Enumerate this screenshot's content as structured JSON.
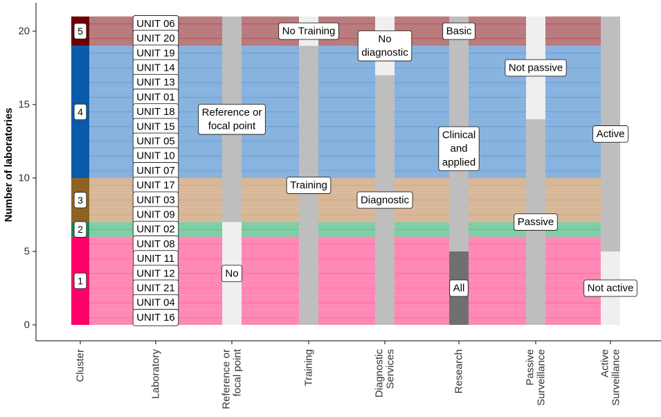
{
  "chart_data": {
    "type": "alluvial",
    "ylabel": "Number of laboratories",
    "ylim": [
      0,
      21
    ],
    "y_ticks": [
      0,
      5,
      10,
      15,
      20
    ],
    "axes": [
      "Cluster",
      "Laboratory",
      "Reference or focal point",
      "Training",
      "Diagnostic Services",
      "Research",
      "Passive Surveillance",
      "Active Surveillance"
    ],
    "strata": [
      [
        {
          "label": "5",
          "y0": 19,
          "y1": 21,
          "fill": "#6d0000"
        },
        {
          "label": "4",
          "y0": 10,
          "y1": 19,
          "fill": "#0a5aaa"
        },
        {
          "label": "3",
          "y0": 7,
          "y1": 10,
          "fill": "#8f6123"
        },
        {
          "label": "2",
          "y0": 6,
          "y1": 7,
          "fill": "#0b8e49"
        },
        {
          "label": "1",
          "y0": 0,
          "y1": 6,
          "fill": "#ff0068"
        }
      ],
      [
        {
          "label": "UNIT 06",
          "y0": 20,
          "y1": 21
        },
        {
          "label": "UNIT 20",
          "y0": 19,
          "y1": 20
        },
        {
          "label": "UNIT 19",
          "y0": 18,
          "y1": 19
        },
        {
          "label": "UNIT 14",
          "y0": 17,
          "y1": 18
        },
        {
          "label": "UNIT 13",
          "y0": 16,
          "y1": 17
        },
        {
          "label": "UNIT 01",
          "y0": 15,
          "y1": 16
        },
        {
          "label": "UNIT 18",
          "y0": 14,
          "y1": 15
        },
        {
          "label": "UNIT 15",
          "y0": 13,
          "y1": 14
        },
        {
          "label": "UNIT 05",
          "y0": 12,
          "y1": 13
        },
        {
          "label": "UNIT 10",
          "y0": 11,
          "y1": 12
        },
        {
          "label": "UNIT 07",
          "y0": 10,
          "y1": 11
        },
        {
          "label": "UNIT 17",
          "y0": 9,
          "y1": 10
        },
        {
          "label": "UNIT 03",
          "y0": 8,
          "y1": 9
        },
        {
          "label": "UNIT 09",
          "y0": 7,
          "y1": 8
        },
        {
          "label": "UNIT 02",
          "y0": 6,
          "y1": 7
        },
        {
          "label": "UNIT 08",
          "y0": 5,
          "y1": 6
        },
        {
          "label": "UNIT 11",
          "y0": 4,
          "y1": 5
        },
        {
          "label": "UNIT 12",
          "y0": 3,
          "y1": 4
        },
        {
          "label": "UNIT 21",
          "y0": 2,
          "y1": 3
        },
        {
          "label": "UNIT 04",
          "y0": 1,
          "y1": 2
        },
        {
          "label": "UNIT 16",
          "y0": 0,
          "y1": 1
        }
      ],
      [
        {
          "label": "Reference or\nfocal point",
          "y0": 7,
          "y1": 21,
          "fill": "#bebebe"
        },
        {
          "label": "No",
          "y0": 0,
          "y1": 7,
          "fill": "#efefef"
        }
      ],
      [
        {
          "label": "No Training",
          "y0": 19,
          "y1": 21,
          "fill": "#efefef"
        },
        {
          "label": "Training",
          "y0": 0,
          "y1": 19,
          "fill": "#bebebe"
        }
      ],
      [
        {
          "label": "No\ndiagnostic",
          "y0": 17,
          "y1": 21,
          "fill": "#efefef"
        },
        {
          "label": "Diagnostic",
          "y0": 0,
          "y1": 17,
          "fill": "#bebebe"
        }
      ],
      [
        {
          "label": "Basic",
          "y0": 19,
          "y1": 21,
          "fill": "#bebebe"
        },
        {
          "label": "Clinical\nand\napplied",
          "y0": 5,
          "y1": 19,
          "fill": "#bebebe"
        },
        {
          "label": "All",
          "y0": 0,
          "y1": 5,
          "fill": "#707070"
        }
      ],
      [
        {
          "label": "Not passive",
          "y0": 14,
          "y1": 21,
          "fill": "#efefef"
        },
        {
          "label": "Passive",
          "y0": 0,
          "y1": 14,
          "fill": "#bebebe"
        }
      ],
      [
        {
          "label": "Active",
          "y0": 5,
          "y1": 21,
          "fill": "#bebebe"
        },
        {
          "label": "Not active",
          "y0": 0,
          "y1": 5,
          "fill": "#efefef"
        }
      ]
    ],
    "flows": [
      {
        "unit": "UNIT 06",
        "cluster": "5",
        "color": "#a0484c",
        "y": [
          20,
          20,
          20,
          20,
          20,
          20,
          20,
          20
        ]
      },
      {
        "unit": "UNIT 20",
        "cluster": "5",
        "color": "#a0484c",
        "y": [
          19,
          19,
          19,
          19,
          19,
          19,
          19,
          19
        ]
      },
      {
        "unit": "UNIT 19",
        "cluster": "4",
        "color": "#5a96d2",
        "y": [
          18,
          18,
          18,
          18,
          18,
          18,
          18,
          18
        ]
      },
      {
        "unit": "UNIT 14",
        "cluster": "4",
        "color": "#5a96d2",
        "y": [
          17,
          17,
          17,
          17,
          17,
          17,
          17,
          17
        ]
      },
      {
        "unit": "UNIT 13",
        "cluster": "4",
        "color": "#5a96d2",
        "y": [
          16,
          16,
          16,
          16,
          16,
          16,
          16,
          16
        ]
      },
      {
        "unit": "UNIT 01",
        "cluster": "4",
        "color": "#5a96d2",
        "y": [
          15,
          15,
          15,
          15,
          15,
          15,
          15,
          15
        ]
      },
      {
        "unit": "UNIT 18",
        "cluster": "4",
        "color": "#5a96d2",
        "y": [
          14,
          14,
          14,
          14,
          14,
          14,
          14,
          14
        ]
      },
      {
        "unit": "UNIT 15",
        "cluster": "4",
        "color": "#5a96d2",
        "y": [
          13,
          13,
          13,
          13,
          13,
          13,
          13,
          13
        ]
      },
      {
        "unit": "UNIT 05",
        "cluster": "4",
        "color": "#5a96d2",
        "y": [
          12,
          12,
          12,
          12,
          12,
          12,
          12,
          12
        ]
      },
      {
        "unit": "UNIT 10",
        "cluster": "4",
        "color": "#5a96d2",
        "y": [
          11,
          11,
          11,
          11,
          11,
          11,
          11,
          11
        ]
      },
      {
        "unit": "UNIT 07",
        "cluster": "4",
        "color": "#5a96d2",
        "y": [
          10,
          10,
          10,
          10,
          10,
          10,
          10,
          10
        ]
      },
      {
        "unit": "UNIT 17",
        "cluster": "3",
        "color": "#c99d72",
        "y": [
          9,
          9,
          9,
          9,
          9,
          9,
          9,
          9
        ]
      },
      {
        "unit": "UNIT 03",
        "cluster": "3",
        "color": "#c99d72",
        "y": [
          8,
          8,
          8,
          8,
          8,
          8,
          8,
          8
        ]
      },
      {
        "unit": "UNIT 09",
        "cluster": "3",
        "color": "#c99d72",
        "y": [
          7,
          7,
          7,
          7,
          7,
          7,
          7,
          7
        ]
      },
      {
        "unit": "UNIT 02",
        "cluster": "2",
        "color": "#4dbb84",
        "y": [
          6,
          6,
          6,
          6,
          6,
          6,
          6,
          6
        ]
      },
      {
        "unit": "UNIT 08",
        "cluster": "1",
        "color": "#ff5c9a",
        "y": [
          5,
          5,
          5,
          5,
          5,
          5,
          5,
          5
        ]
      },
      {
        "unit": "UNIT 11",
        "cluster": "1",
        "color": "#ff5c9a",
        "y": [
          4,
          4,
          4,
          4,
          4,
          4,
          4,
          4
        ]
      },
      {
        "unit": "UNIT 12",
        "cluster": "1",
        "color": "#ff5c9a",
        "y": [
          3,
          3,
          3,
          3,
          3,
          3,
          3,
          3
        ]
      },
      {
        "unit": "UNIT 21",
        "cluster": "1",
        "color": "#ff5c9a",
        "y": [
          2,
          2,
          2,
          2,
          2,
          2,
          2,
          2
        ]
      },
      {
        "unit": "UNIT 04",
        "cluster": "1",
        "color": "#ff5c9a",
        "y": [
          1,
          1,
          1,
          1,
          1,
          1,
          1,
          1
        ]
      },
      {
        "unit": "UNIT 16",
        "cluster": "1",
        "color": "#ff5c9a",
        "y": [
          0,
          0,
          0,
          0,
          0,
          0,
          0,
          0
        ]
      }
    ]
  }
}
